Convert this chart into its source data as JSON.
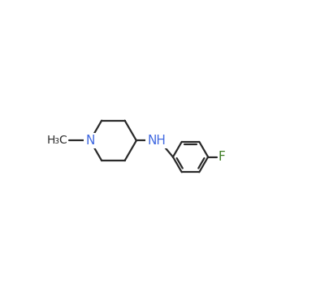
{
  "background_color": "#ffffff",
  "bond_color": "#2a2a2a",
  "N_color": "#4169e1",
  "F_color": "#3a7a20",
  "methyl_label": "H₃C",
  "N_label": "N",
  "NH_label": "NH",
  "F_label": "F",
  "figsize": [
    3.89,
    3.7
  ],
  "dpi": 100,
  "xlim": [
    0,
    10
  ],
  "ylim": [
    0,
    9.5
  ]
}
